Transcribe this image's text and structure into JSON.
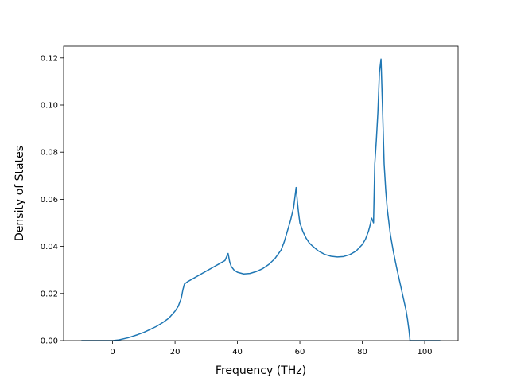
{
  "chart_data": {
    "type": "line",
    "title": "",
    "xlabel": "Frequency (THz)",
    "ylabel": "Density of States",
    "xlim": [
      -15.7,
      110.7
    ],
    "ylim": [
      0,
      0.125
    ],
    "xticks": [
      0,
      20,
      40,
      60,
      80,
      100
    ],
    "yticks": [
      0.0,
      0.02,
      0.04,
      0.06,
      0.08,
      0.1,
      0.12
    ],
    "ytick_labels": [
      "0.00",
      "0.02",
      "0.04",
      "0.06",
      "0.08",
      "0.10",
      "0.12"
    ],
    "grid": false,
    "legend": "none",
    "colors": {
      "line": "#1f77b4"
    },
    "series": [
      {
        "x": [
          -10,
          -5,
          0,
          2,
          5,
          8,
          10,
          12,
          14,
          16,
          18,
          20,
          21,
          22,
          22.5,
          23,
          24,
          26,
          28,
          30,
          32,
          34,
          36,
          37,
          37.5,
          38,
          39,
          40,
          42,
          44,
          46,
          48,
          50,
          52,
          54,
          55,
          56,
          57,
          58,
          58.8,
          59.2,
          59.6,
          60,
          61,
          62,
          63,
          64,
          66,
          68,
          70,
          72,
          74,
          76,
          78,
          80,
          81,
          82,
          82.5,
          83,
          83.3,
          83.6,
          84,
          84.5,
          85,
          85.5,
          86,
          86.5,
          87,
          87.5,
          88,
          89,
          90,
          91,
          92,
          93,
          94,
          94.5,
          95,
          95.3,
          96,
          100,
          105
        ],
        "y": [
          0,
          0,
          0,
          0.0003,
          0.0012,
          0.0025,
          0.0035,
          0.0047,
          0.006,
          0.0076,
          0.0095,
          0.0125,
          0.0145,
          0.018,
          0.0215,
          0.024,
          0.025,
          0.0265,
          0.028,
          0.0295,
          0.031,
          0.0325,
          0.034,
          0.037,
          0.0335,
          0.0315,
          0.0298,
          0.029,
          0.0283,
          0.0285,
          0.0293,
          0.0305,
          0.0323,
          0.0348,
          0.0385,
          0.042,
          0.0465,
          0.051,
          0.0565,
          0.065,
          0.059,
          0.054,
          0.05,
          0.0462,
          0.0435,
          0.0415,
          0.0402,
          0.038,
          0.0366,
          0.0358,
          0.0355,
          0.0357,
          0.0365,
          0.038,
          0.0408,
          0.043,
          0.0465,
          0.049,
          0.052,
          0.051,
          0.05,
          0.075,
          0.085,
          0.097,
          0.114,
          0.1195,
          0.098,
          0.075,
          0.064,
          0.056,
          0.045,
          0.0375,
          0.031,
          0.025,
          0.019,
          0.013,
          0.009,
          0.004,
          0,
          0,
          0,
          0
        ]
      }
    ]
  }
}
